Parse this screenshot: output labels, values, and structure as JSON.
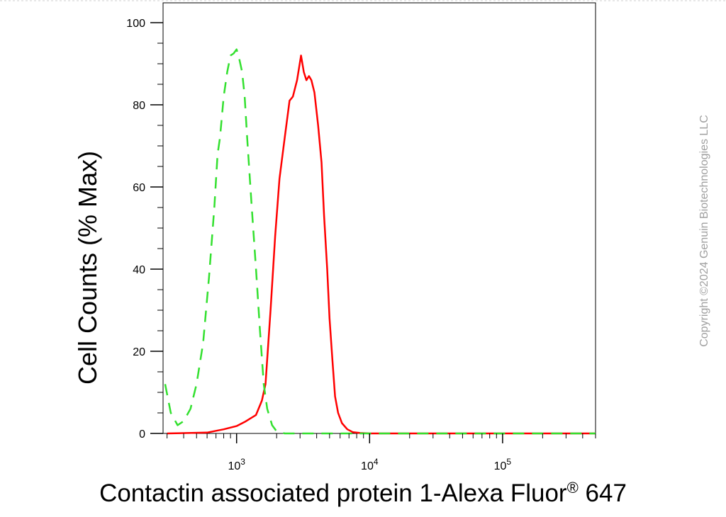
{
  "chart_data": {
    "type": "line",
    "title": "",
    "xlabel": "Contactin associated protein 1-Alexa Fluor",
    "xlabel_sup": "®",
    "xlabel_suffix": " 647",
    "ylabel": "Cell Counts (% Max)",
    "x_scale": "log",
    "xlim": [
      280,
      500000
    ],
    "ylim": [
      0,
      100
    ],
    "y_ticks": [
      0,
      20,
      40,
      60,
      80,
      100
    ],
    "x_major_ticks": [
      {
        "value": 1000,
        "base": "10",
        "exp": "3"
      },
      {
        "value": 10000,
        "base": "10",
        "exp": "4"
      },
      {
        "value": 100000,
        "base": "10",
        "exp": "5"
      }
    ],
    "grid": false,
    "legend": "none",
    "series": [
      {
        "color": "#ff0000",
        "style": "solid",
        "points": [
          [
            300,
            0
          ],
          [
            600,
            0.2
          ],
          [
            800,
            1
          ],
          [
            1000,
            1.8
          ],
          [
            1150,
            2.8
          ],
          [
            1400,
            4.5
          ],
          [
            1550,
            8
          ],
          [
            1650,
            12
          ],
          [
            1800,
            30
          ],
          [
            1950,
            48
          ],
          [
            2100,
            62
          ],
          [
            2300,
            72
          ],
          [
            2500,
            81
          ],
          [
            2650,
            82
          ],
          [
            2850,
            86
          ],
          [
            3050,
            92
          ],
          [
            3200,
            88
          ],
          [
            3350,
            86
          ],
          [
            3500,
            87
          ],
          [
            3650,
            86
          ],
          [
            3850,
            83
          ],
          [
            4100,
            75
          ],
          [
            4350,
            66
          ],
          [
            4550,
            53
          ],
          [
            4800,
            40
          ],
          [
            5000,
            28
          ],
          [
            5250,
            18
          ],
          [
            5500,
            9
          ],
          [
            5800,
            5
          ],
          [
            6200,
            2.5
          ],
          [
            6800,
            1
          ],
          [
            7500,
            0.3
          ],
          [
            8500,
            0.1
          ],
          [
            10000,
            0
          ],
          [
            500000,
            0
          ]
        ]
      },
      {
        "color": "#33e02f",
        "style": "dashed",
        "points": [
          [
            290,
            12
          ],
          [
            320,
            5
          ],
          [
            360,
            2
          ],
          [
            400,
            3
          ],
          [
            450,
            6
          ],
          [
            500,
            12
          ],
          [
            560,
            22
          ],
          [
            620,
            38
          ],
          [
            680,
            55
          ],
          [
            720,
            68
          ],
          [
            750,
            72
          ],
          [
            800,
            82
          ],
          [
            850,
            88
          ],
          [
            900,
            92
          ],
          [
            950,
            92.5
          ],
          [
            1000,
            93.5
          ],
          [
            1050,
            91
          ],
          [
            1100,
            88
          ],
          [
            1150,
            82
          ],
          [
            1200,
            72
          ],
          [
            1300,
            55
          ],
          [
            1400,
            40
          ],
          [
            1500,
            25
          ],
          [
            1600,
            12
          ],
          [
            1700,
            6
          ],
          [
            1850,
            2
          ],
          [
            2000,
            0.5
          ],
          [
            2300,
            0
          ],
          [
            500000,
            0
          ]
        ]
      }
    ]
  },
  "copyright": "Copyright ©2024 Genuin Biotechnologies LLC"
}
